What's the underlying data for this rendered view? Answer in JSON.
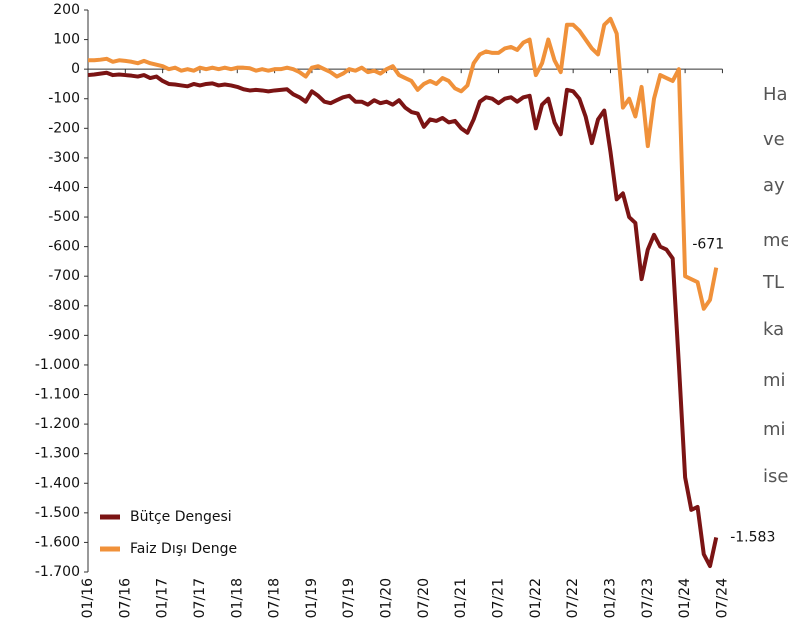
{
  "chart_data": {
    "type": "line",
    "categories": [
      "01/16",
      null,
      null,
      null,
      null,
      null,
      "07/16",
      null,
      null,
      null,
      null,
      null,
      "01/17",
      null,
      null,
      null,
      null,
      null,
      "07/17",
      null,
      null,
      null,
      null,
      null,
      "01/18",
      null,
      null,
      null,
      null,
      null,
      "07/18",
      null,
      null,
      null,
      null,
      null,
      "01/19",
      null,
      null,
      null,
      null,
      null,
      "07/19",
      null,
      null,
      null,
      null,
      null,
      "01/20",
      null,
      null,
      null,
      null,
      null,
      "07/20",
      null,
      null,
      null,
      null,
      null,
      "01/21",
      null,
      null,
      null,
      null,
      null,
      "07/21",
      null,
      null,
      null,
      null,
      null,
      "01/22",
      null,
      null,
      null,
      null,
      null,
      "07/22",
      null,
      null,
      null,
      null,
      null,
      "01/23",
      null,
      null,
      null,
      null,
      null,
      "07/23",
      null,
      null,
      null,
      null,
      null,
      "01/24",
      null,
      null,
      null,
      null,
      null,
      "07/24"
    ],
    "series": [
      {
        "name": "Bütçe Dengesi",
        "color": "#7b1414",
        "values": [
          -20,
          -18,
          -15,
          -12,
          -20,
          -18,
          -20,
          -22,
          -25,
          -20,
          -30,
          -25,
          -40,
          -50,
          -52,
          -55,
          -58,
          -50,
          -55,
          -50,
          -48,
          -55,
          -52,
          -55,
          -60,
          -68,
          -72,
          -70,
          -72,
          -75,
          -72,
          -70,
          -68,
          -85,
          -95,
          -110,
          -75,
          -90,
          -110,
          -115,
          -105,
          -95,
          -90,
          -110,
          -110,
          -120,
          -105,
          -115,
          -110,
          -120,
          -105,
          -130,
          -145,
          -150,
          -195,
          -170,
          -175,
          -165,
          -180,
          -175,
          -200,
          -215,
          -170,
          -110,
          -95,
          -100,
          -115,
          -100,
          -95,
          -110,
          -95,
          -90,
          -200,
          -120,
          -100,
          -180,
          -220,
          -70,
          -75,
          -100,
          -160,
          -250,
          -170,
          -140,
          -280,
          -440,
          -420,
          -500,
          -520,
          -710,
          -610,
          -560,
          -600,
          -610,
          -640,
          -1000,
          -1380,
          -1490,
          -1480,
          -1640,
          -1680,
          -1583,
          null
        ],
        "value_labels": [
          null,
          null,
          null,
          null,
          null,
          null,
          null,
          null,
          null,
          null,
          null,
          null,
          null,
          null,
          null,
          null,
          null,
          null,
          null,
          null,
          null,
          null,
          null,
          null,
          null,
          null,
          null,
          null,
          null,
          null,
          null,
          null,
          null,
          null,
          null,
          null,
          null,
          null,
          null,
          null,
          null,
          null,
          null,
          null,
          null,
          null,
          null,
          null,
          null,
          null,
          null,
          null,
          null,
          null,
          null,
          null,
          null,
          null,
          null,
          null,
          null,
          null,
          null,
          null,
          null,
          null,
          null,
          null,
          null,
          null,
          null,
          null,
          null,
          null,
          null,
          null,
          null,
          null,
          null,
          null,
          null,
          null,
          null,
          null,
          null,
          null,
          null,
          null,
          null,
          null,
          null,
          null,
          null,
          null,
          null,
          null,
          null,
          null,
          null,
          null,
          null,
          "-1.583",
          null
        ]
      },
      {
        "name": "Faiz Dışı Denge",
        "color": "#f0913a",
        "values": [
          30,
          30,
          32,
          35,
          25,
          30,
          28,
          25,
          20,
          28,
          20,
          15,
          10,
          0,
          5,
          -5,
          0,
          -5,
          5,
          0,
          5,
          0,
          5,
          0,
          5,
          5,
          3,
          -5,
          0,
          -5,
          0,
          0,
          5,
          0,
          -10,
          -25,
          5,
          10,
          0,
          -10,
          -25,
          -15,
          0,
          -5,
          5,
          -10,
          -5,
          -15,
          0,
          10,
          -20,
          -30,
          -40,
          -70,
          -50,
          -40,
          -50,
          -30,
          -40,
          -65,
          -75,
          -55,
          20,
          50,
          60,
          55,
          55,
          70,
          75,
          65,
          90,
          100,
          -20,
          20,
          100,
          30,
          -10,
          150,
          150,
          130,
          100,
          70,
          50,
          150,
          170,
          120,
          -130,
          -100,
          -160,
          -60,
          -260,
          -100,
          -20,
          -30,
          -40,
          0,
          -700,
          -710,
          -720,
          -810,
          -780,
          -671,
          null
        ],
        "value_labels": [
          null,
          null,
          null,
          null,
          null,
          null,
          null,
          null,
          null,
          null,
          null,
          null,
          null,
          null,
          null,
          null,
          null,
          null,
          null,
          null,
          null,
          null,
          null,
          null,
          null,
          null,
          null,
          null,
          null,
          null,
          null,
          null,
          null,
          null,
          null,
          null,
          null,
          null,
          null,
          null,
          null,
          null,
          null,
          null,
          null,
          null,
          null,
          null,
          null,
          null,
          null,
          null,
          null,
          null,
          null,
          null,
          null,
          null,
          null,
          null,
          null,
          null,
          null,
          null,
          null,
          null,
          null,
          null,
          null,
          null,
          null,
          null,
          null,
          null,
          null,
          null,
          null,
          null,
          null,
          null,
          null,
          null,
          null,
          null,
          null,
          null,
          null,
          null,
          null,
          null,
          null,
          null,
          null,
          null,
          null,
          null,
          null,
          null,
          null,
          null,
          null,
          "-671",
          null
        ]
      }
    ],
    "ylim": [
      -1700,
      200
    ],
    "yticks": [
      200,
      100,
      0,
      -100,
      -200,
      -300,
      -400,
      -500,
      -600,
      -700,
      -800,
      -900,
      {
        "value": -1000,
        "label": "-1.000"
      },
      {
        "value": -1100,
        "label": "-1.100"
      },
      {
        "value": -1200,
        "label": "-1.200"
      },
      {
        "value": -1300,
        "label": "-1.300"
      },
      {
        "value": -1400,
        "label": "-1.400"
      },
      {
        "value": -1500,
        "label": "-1.500"
      },
      {
        "value": -1600,
        "label": "-1.600"
      },
      {
        "value": -1700,
        "label": "-1.700"
      }
    ],
    "legend": "lower left"
  },
  "side_text": [
    "Ha",
    "ve",
    "ay",
    "me",
    "TL",
    "ka",
    "mi",
    "mi",
    "ise"
  ]
}
